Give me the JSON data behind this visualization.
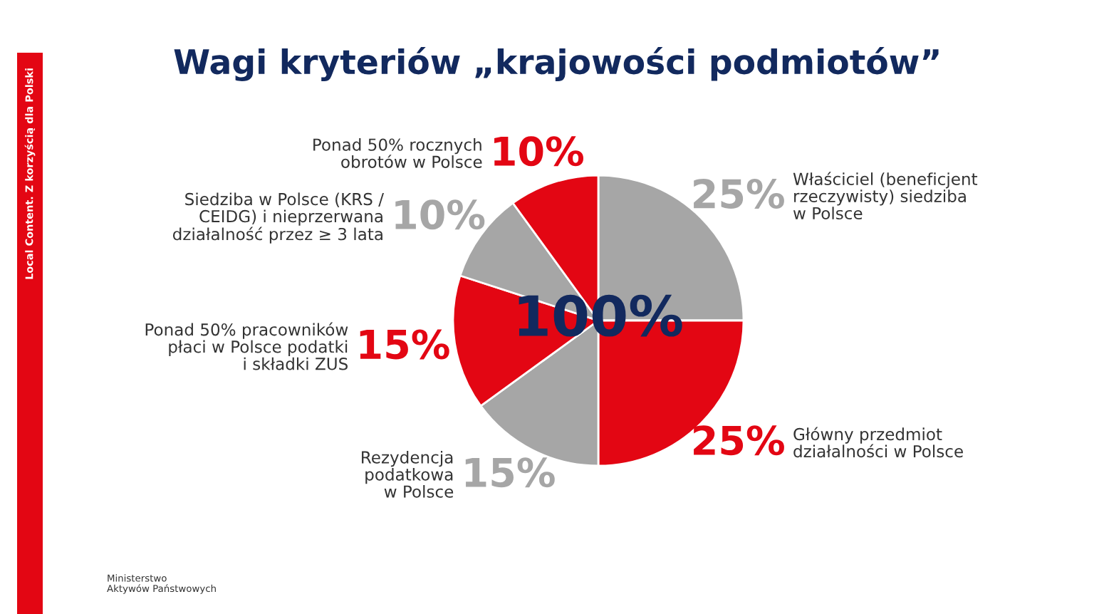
{
  "chart_data": {
    "type": "pie",
    "title": "Wagi kryteriów „krajowości podmiotów”",
    "categories": [
      "Właściciel (beneficjent\nrzeczywisty) siedziba\nw Polsce",
      "Główny przedmiot\ndziałalności w Polsce",
      "Rezydencja\npodatkowa\nw Polsce",
      "Ponad 50% pracowników\npłaci w Polsce podatki\ni składki ZUS",
      "Siedziba w Polsce (KRS /\nCEIDG) i nieprzerwana\ndziałalność przez ≥ 3 lata",
      "Ponad 50% rocznych\nobrotów w Polsce"
    ],
    "values": [
      25,
      25,
      15,
      15,
      10,
      10
    ],
    "colors": [
      "#a6a6a6",
      "#e30613",
      "#a6a6a6",
      "#e30613",
      "#a6a6a6",
      "#e30613"
    ],
    "value_labels": [
      "25%",
      "25%",
      "15%",
      "15%",
      "10%",
      "10%"
    ],
    "annotations": [
      "100%",
      "Local Content. Z korzyścią dla Polski",
      "Ministerstwo\nAktywów Państwowych"
    ]
  }
}
